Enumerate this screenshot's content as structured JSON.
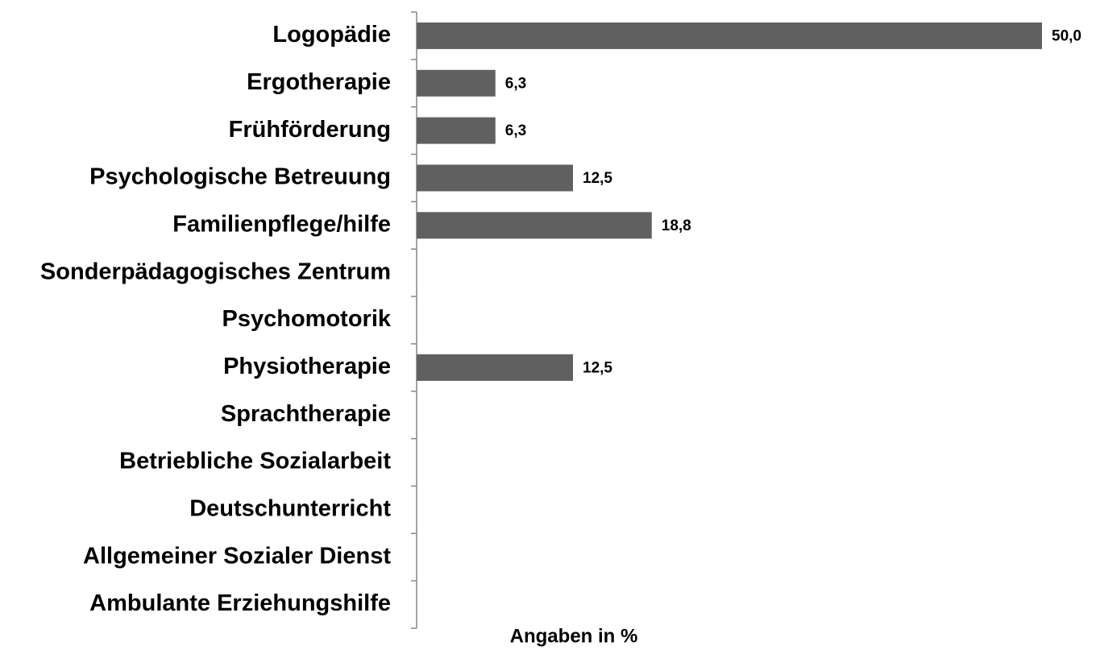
{
  "chart_data": {
    "type": "barh",
    "categories": [
      "Logopädie",
      "Ergotherapie",
      "Frühförderung",
      "Psychologische Betreuung",
      "Familienpflege/hilfe",
      "Sonderpädagogisches Zentrum",
      "Psychomotorik",
      "Physiotherapie",
      "Sprachtherapie",
      "Betriebliche Sozialarbeit",
      "Deutschunterricht",
      "Allgemeiner Sozialer Dienst",
      "Ambulante Erziehungshilfe"
    ],
    "values": [
      50.0,
      6.3,
      6.3,
      12.5,
      18.8,
      0,
      0,
      12.5,
      0,
      0,
      0,
      0,
      0
    ],
    "value_labels": [
      "50,0",
      "6,3",
      "6,3",
      "12,5",
      "18,8",
      null,
      null,
      "12,5",
      null,
      null,
      null,
      null,
      null
    ],
    "color": "#606060",
    "xlabel": "Angaben in %",
    "xlim": [
      0,
      50
    ]
  }
}
